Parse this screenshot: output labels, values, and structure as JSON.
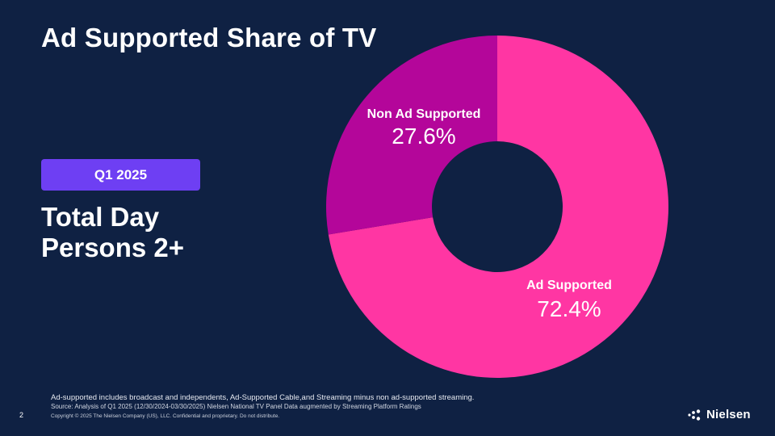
{
  "slide": {
    "title": "Ad Supported Share of TV",
    "period": "Q1 2025",
    "subtitle_line1": "Total Day",
    "subtitle_line2": "Persons 2+",
    "page_number": "2"
  },
  "footer": {
    "footnote": "Ad-supported includes broadcast and independents, Ad-Supported Cable,and Streaming minus non ad-supported streaming.",
    "source": "Source: Analysis of Q1 2025 (12/30/2024-03/30/2025)  Nielsen National TV Panel Data augmented by Streaming Platform Ratings",
    "copyright": "Copyright © 2025 The Nielsen Company (US), LLC. Confidential and proprietary. Do not distribute.",
    "logo_text": "Nielsen"
  },
  "colors": {
    "background": "#0f2143",
    "badge": "#6e3ff3",
    "ad_supported": "#ff36a3",
    "non_ad_supported": "#b4069a"
  },
  "chart_data": {
    "type": "pie",
    "donut": true,
    "categories": [
      "Ad Supported",
      "Non Ad Supported"
    ],
    "values": [
      72.4,
      27.6
    ],
    "value_labels": [
      "72.4%",
      "27.6%"
    ],
    "colors": [
      "#ff36a3",
      "#b4069a"
    ],
    "start": "12 o'clock",
    "direction": "clockwise"
  }
}
